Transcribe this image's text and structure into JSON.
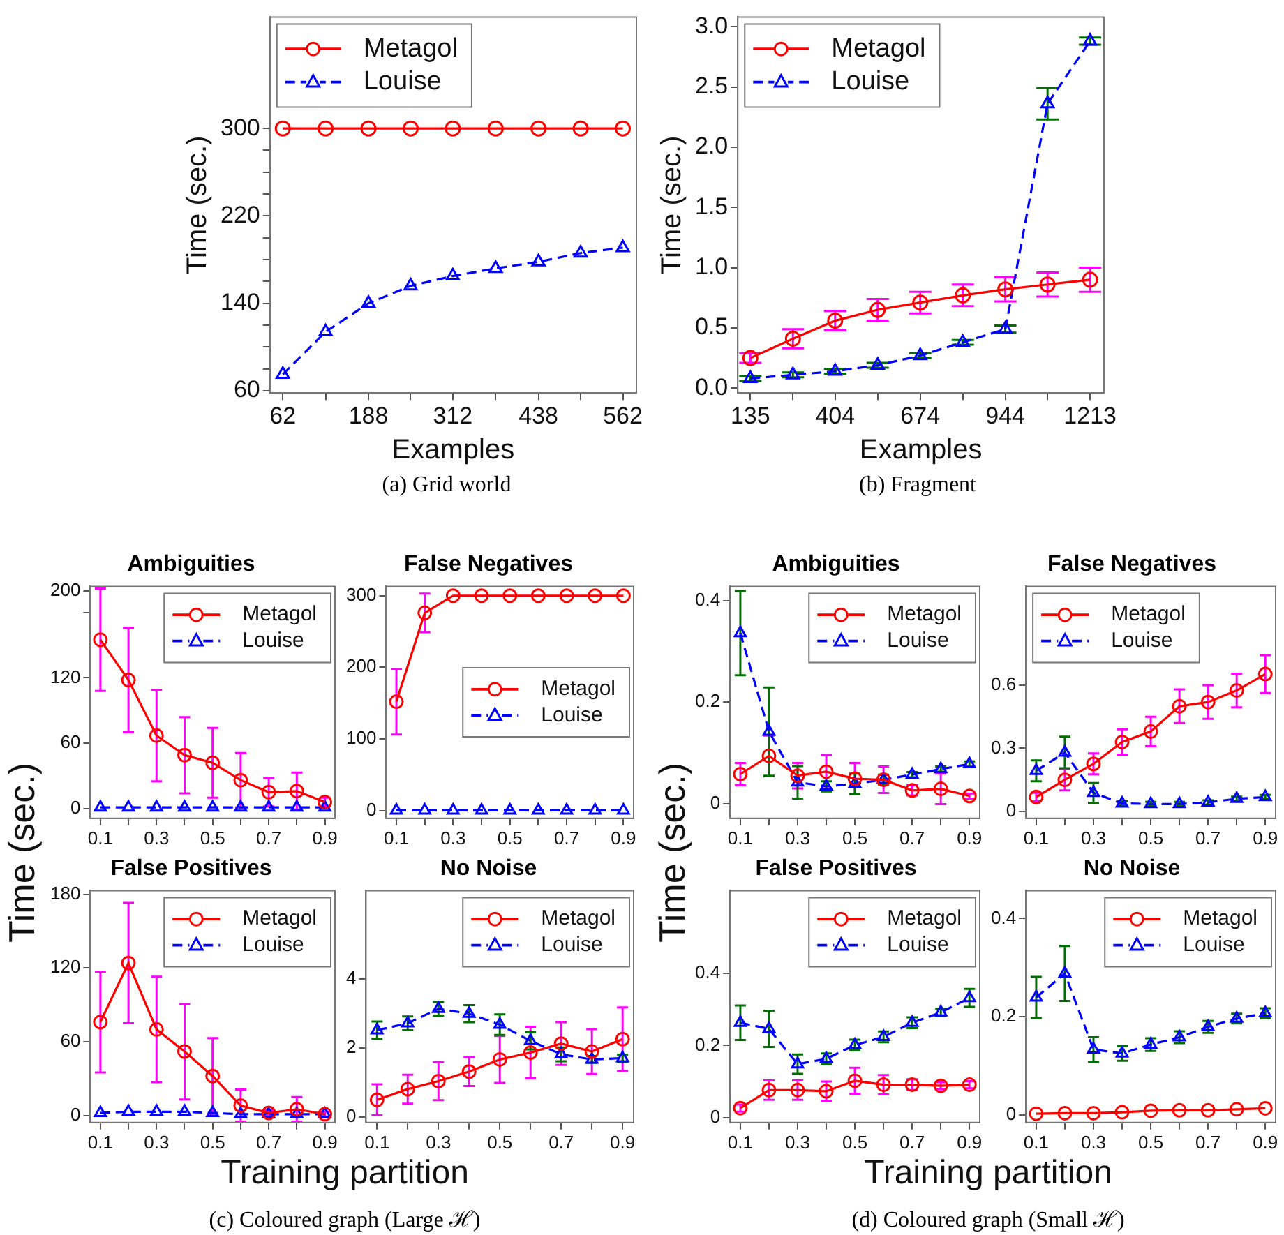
{
  "chart_data": [
    {
      "type": "line",
      "xlabel": "Examples",
      "ylabel": "Time (sec.)",
      "legend": "top left",
      "annotations": [
        "(a) Grid world"
      ],
      "x": [
        62,
        125,
        188,
        250,
        312,
        375,
        438,
        500,
        562
      ],
      "xlim": [
        43,
        582
      ],
      "ylim": [
        58,
        402
      ],
      "xticks": [
        62,
        {
          "value": 125,
          "label": null
        },
        188,
        {
          "value": 250,
          "label": null
        },
        312,
        {
          "value": 375,
          "label": null
        },
        438,
        {
          "value": 500,
          "label": null
        },
        562
      ],
      "yticks": [
        60,
        {
          "value": 80,
          "label": null
        },
        {
          "value": 100,
          "label": null
        },
        {
          "value": 120,
          "label": null
        },
        140,
        {
          "value": 160,
          "label": null
        },
        {
          "value": 180,
          "label": null
        },
        {
          "value": 200,
          "label": null
        },
        220,
        {
          "value": 240,
          "label": null
        },
        {
          "value": 260,
          "label": null
        },
        {
          "value": 280,
          "label": null
        },
        300
      ],
      "series": [
        {
          "name": "Metagol",
          "color": "#ff0000",
          "marker": "circle",
          "line_style": "solid",
          "values": [
            300,
            300,
            300,
            300,
            300,
            300,
            300,
            300,
            300
          ]
        },
        {
          "name": "Louise",
          "color": "#0000ff",
          "marker": "triangle",
          "line_style": "dashed",
          "values": [
            75,
            114,
            140,
            156,
            165,
            172,
            178,
            186,
            191
          ]
        }
      ]
    },
    {
      "type": "line",
      "xlabel": "Examples",
      "ylabel": "Time (sec.)",
      "legend": "top left",
      "annotations": [
        "(b) Fragment"
      ],
      "x": [
        135,
        270,
        404,
        539,
        674,
        809,
        944,
        1078,
        1213
      ],
      "xlim": [
        95,
        1257
      ],
      "ylim": [
        -0.04,
        3.08
      ],
      "xticks": [
        135,
        {
          "value": 270,
          "label": null
        },
        404,
        {
          "value": 539,
          "label": null
        },
        674,
        {
          "value": 809,
          "label": null
        },
        944,
        {
          "value": 1078,
          "label": null
        },
        1213
      ],
      "yticks": [
        {
          "value": 0,
          "label": "0.0"
        },
        0.5,
        {
          "value": 1,
          "label": "1.0"
        },
        1.5,
        {
          "value": 2,
          "label": "2.0"
        },
        2.5,
        {
          "value": 3,
          "label": "3.0"
        }
      ],
      "series": [
        {
          "name": "Metagol",
          "color": "#ff0000",
          "marker": "circle",
          "line_style": "solid",
          "values": [
            0.25,
            0.41,
            0.56,
            0.65,
            0.71,
            0.77,
            0.82,
            0.86,
            0.9
          ],
          "errors": [
            0.04,
            0.08,
            0.08,
            0.09,
            0.09,
            0.09,
            0.1,
            0.1,
            0.1
          ]
        },
        {
          "name": "Louise",
          "color": "#0000ff",
          "marker": "triangle",
          "line_style": "dashed",
          "values": [
            0.08,
            0.11,
            0.14,
            0.19,
            0.27,
            0.38,
            0.49,
            2.36,
            2.88
          ],
          "errors": [
            0.02,
            0.02,
            0.02,
            0.02,
            0.02,
            0.02,
            0.03,
            0.13,
            0.03
          ]
        }
      ]
    },
    {
      "type": "line",
      "title": "Ambiguities",
      "ylabel": "Time (sec.)",
      "legend": "top right",
      "annotations": [
        "(c) Coloured graph (Large ℋ)"
      ],
      "x": [
        0.1,
        0.2,
        0.3,
        0.4,
        0.5,
        0.6,
        0.7,
        0.8,
        0.9
      ],
      "xlim": [
        0.064,
        0.936
      ],
      "ylim": [
        -9,
        204
      ],
      "xticks": [
        0.1,
        {
          "value": 0.2,
          "label": null
        },
        0.3,
        {
          "value": 0.4,
          "label": null
        },
        0.5,
        {
          "value": 0.6,
          "label": null
        },
        0.7,
        {
          "value": 0.8,
          "label": null
        },
        0.9
      ],
      "yticks": [
        0,
        60,
        120,
        {
          "value": 180,
          "label": null
        },
        200
      ],
      "series": [
        {
          "name": "Metagol",
          "color": "#ff0000",
          "marker": "circle",
          "line_style": "solid",
          "values": [
            155,
            118,
            67,
            49,
            42,
            26,
            15,
            16,
            6
          ],
          "errors": [
            47,
            48,
            42,
            35,
            32,
            25,
            13,
            17,
            4
          ]
        },
        {
          "name": "Louise",
          "color": "#0000ff",
          "marker": "triangle",
          "line_style": "dashed",
          "values": [
            1,
            1,
            1,
            1,
            1,
            1,
            1,
            1,
            1
          ]
        }
      ]
    },
    {
      "type": "line",
      "title": "False Negatives",
      "legend": "right",
      "x": [
        0.1,
        0.2,
        0.3,
        0.4,
        0.5,
        0.6,
        0.7,
        0.8,
        0.9
      ],
      "xlim": [
        0.064,
        0.936
      ],
      "ylim": [
        -11,
        313
      ],
      "xticks": [
        0.1,
        {
          "value": 0.2,
          "label": null
        },
        0.3,
        {
          "value": 0.4,
          "label": null
        },
        0.5,
        {
          "value": 0.6,
          "label": null
        },
        0.7,
        {
          "value": 0.8,
          "label": null
        },
        0.9
      ],
      "yticks": [
        0,
        100,
        200,
        300
      ],
      "series": [
        {
          "name": "Metagol",
          "color": "#ff0000",
          "marker": "circle",
          "line_style": "solid",
          "values": [
            152,
            276,
            300,
            300,
            300,
            300,
            300,
            300,
            300
          ],
          "errors": [
            46,
            27,
            null,
            null,
            null,
            null,
            null,
            null,
            null
          ]
        },
        {
          "name": "Louise",
          "color": "#0000ff",
          "marker": "triangle",
          "line_style": "dashed",
          "values": [
            0,
            0,
            0,
            0,
            0,
            0,
            0,
            0,
            0
          ]
        }
      ]
    },
    {
      "type": "line",
      "title": "False Positives",
      "xlabel": "Training partition",
      "legend": "top right",
      "x": [
        0.1,
        0.2,
        0.3,
        0.4,
        0.5,
        0.6,
        0.7,
        0.8,
        0.9
      ],
      "xlim": [
        0.064,
        0.936
      ],
      "ylim": [
        -5.8,
        183
      ],
      "xticks": [
        0.1,
        {
          "value": 0.2,
          "label": null
        },
        0.3,
        {
          "value": 0.4,
          "label": null
        },
        0.5,
        {
          "value": 0.6,
          "label": null
        },
        0.7,
        {
          "value": 0.8,
          "label": null
        },
        0.9
      ],
      "yticks": [
        0,
        60,
        120,
        180
      ],
      "series": [
        {
          "name": "Metagol",
          "color": "#ff0000",
          "marker": "circle",
          "line_style": "solid",
          "values": [
            76,
            124,
            70,
            52,
            32,
            8,
            2,
            5,
            1
          ],
          "errors": [
            41,
            49,
            43,
            39,
            31,
            13,
            2,
            10,
            2
          ]
        },
        {
          "name": "Louise",
          "color": "#0000ff",
          "marker": "triangle",
          "line_style": "dashed",
          "values": [
            2,
            3,
            3,
            3,
            2,
            1,
            1,
            1,
            1
          ]
        }
      ]
    },
    {
      "type": "line",
      "title": "No Noise",
      "legend": "top right",
      "x": [
        0.1,
        0.2,
        0.3,
        0.4,
        0.5,
        0.6,
        0.7,
        0.8,
        0.9
      ],
      "xlim": [
        0.064,
        0.936
      ],
      "ylim": [
        -0.16,
        6.57
      ],
      "xticks": [
        0.1,
        {
          "value": 0.2,
          "label": null
        },
        0.3,
        {
          "value": 0.4,
          "label": null
        },
        0.5,
        {
          "value": 0.6,
          "label": null
        },
        0.7,
        {
          "value": 0.8,
          "label": null
        },
        0.9
      ],
      "yticks": [
        0,
        2,
        4
      ],
      "series": [
        {
          "name": "Metagol",
          "color": "#ff0000",
          "marker": "circle",
          "line_style": "solid",
          "values": [
            0.5,
            0.81,
            1.04,
            1.32,
            1.67,
            1.87,
            2.13,
            1.9,
            2.26
          ],
          "errors": [
            0.45,
            0.42,
            0.55,
            0.42,
            0.68,
            0.75,
            0.62,
            0.65,
            0.92
          ]
        },
        {
          "name": "Louise",
          "color": "#0000ff",
          "marker": "triangle",
          "line_style": "dashed",
          "values": [
            2.52,
            2.72,
            3.14,
            3.0,
            2.68,
            2.21,
            1.82,
            1.67,
            1.71
          ],
          "errors": [
            0.25,
            0.2,
            0.2,
            0.25,
            0.3,
            0.25,
            0.2,
            0.1,
            0.1
          ]
        }
      ]
    },
    {
      "type": "line",
      "title": "Ambiguities",
      "ylabel": "Time (sec.)",
      "legend": "top right",
      "annotations": [
        "(d) Coloured graph (Small ℋ)"
      ],
      "x": [
        0.1,
        0.2,
        0.3,
        0.4,
        0.5,
        0.6,
        0.7,
        0.8,
        0.9
      ],
      "xlim": [
        0.064,
        0.936
      ],
      "ylim": [
        -0.029,
        0.428
      ],
      "xticks": [
        0.1,
        {
          "value": 0.2,
          "label": null
        },
        0.3,
        {
          "value": 0.4,
          "label": null
        },
        0.5,
        {
          "value": 0.6,
          "label": null
        },
        0.7,
        {
          "value": 0.8,
          "label": null
        },
        0.9
      ],
      "yticks": [
        0,
        0.2,
        0.4
      ],
      "series": [
        {
          "name": "Metagol",
          "color": "#ff0000",
          "marker": "circle",
          "line_style": "solid",
          "values": [
            0.058,
            0.094,
            0.055,
            0.063,
            0.049,
            0.047,
            0.026,
            0.029,
            0.015
          ],
          "errors": [
            0.022,
            0.04,
            0.025,
            0.033,
            0.031,
            0.026,
            0.01,
            0.03,
            0.005
          ]
        },
        {
          "name": "Louise",
          "color": "#0000ff",
          "marker": "triangle",
          "line_style": "dashed",
          "values": [
            0.336,
            0.142,
            0.042,
            0.034,
            0.039,
            0.047,
            0.057,
            0.068,
            0.078
          ],
          "errors": [
            0.083,
            0.087,
            0.032,
            0.01,
            0.02,
            0.01,
            0.005,
            0.005,
            0.005
          ]
        }
      ]
    },
    {
      "type": "line",
      "title": "False Negatives",
      "legend": "top left",
      "x": [
        0.1,
        0.2,
        0.3,
        0.4,
        0.5,
        0.6,
        0.7,
        0.8,
        0.9
      ],
      "xlim": [
        0.064,
        0.936
      ],
      "ylim": [
        -0.033,
        1.07
      ],
      "xticks": [
        0.1,
        {
          "value": 0.2,
          "label": null
        },
        0.3,
        {
          "value": 0.4,
          "label": null
        },
        0.5,
        {
          "value": 0.6,
          "label": null
        },
        0.7,
        {
          "value": 0.8,
          "label": null
        },
        0.9
      ],
      "yticks": [
        0,
        0.3,
        0.6
      ],
      "series": [
        {
          "name": "Metagol",
          "color": "#ff0000",
          "marker": "circle",
          "line_style": "solid",
          "values": [
            0.068,
            0.15,
            0.226,
            0.33,
            0.38,
            0.5,
            0.52,
            0.575,
            0.653
          ],
          "errors": [
            0.02,
            0.05,
            0.05,
            0.06,
            0.07,
            0.08,
            0.08,
            0.08,
            0.09
          ]
        },
        {
          "name": "Louise",
          "color": "#0000ff",
          "marker": "triangle",
          "line_style": "dashed",
          "values": [
            0.193,
            0.28,
            0.088,
            0.038,
            0.035,
            0.035,
            0.043,
            0.06,
            0.068
          ],
          "errors": [
            0.05,
            0.075,
            0.047,
            0.01,
            0.01,
            0.01,
            0.01,
            0.01,
            0.01
          ]
        }
      ]
    },
    {
      "type": "line",
      "title": "False Positives",
      "xlabel": "Training partition",
      "legend": "top right",
      "x": [
        0.1,
        0.2,
        0.3,
        0.4,
        0.5,
        0.6,
        0.7,
        0.8,
        0.9
      ],
      "xlim": [
        0.064,
        0.936
      ],
      "ylim": [
        -0.014,
        0.63
      ],
      "xticks": [
        0.1,
        {
          "value": 0.2,
          "label": null
        },
        0.3,
        {
          "value": 0.4,
          "label": null
        },
        0.5,
        {
          "value": 0.6,
          "label": null
        },
        0.7,
        {
          "value": 0.8,
          "label": null
        },
        0.9
      ],
      "yticks": [
        0,
        0.2,
        0.4
      ],
      "series": [
        {
          "name": "Metagol",
          "color": "#ff0000",
          "marker": "circle",
          "line_style": "solid",
          "values": [
            0.026,
            0.076,
            0.076,
            0.073,
            0.102,
            0.091,
            0.091,
            0.088,
            0.091
          ],
          "errors": [
            0.01,
            0.027,
            0.027,
            0.027,
            0.036,
            0.027,
            0.015,
            0.01,
            0.01
          ]
        },
        {
          "name": "Louise",
          "color": "#0000ff",
          "marker": "triangle",
          "line_style": "dashed",
          "values": [
            0.263,
            0.246,
            0.148,
            0.163,
            0.201,
            0.224,
            0.263,
            0.292,
            0.332
          ],
          "errors": [
            0.048,
            0.05,
            0.027,
            0.015,
            0.015,
            0.015,
            0.015,
            0.01,
            0.025
          ]
        }
      ]
    },
    {
      "type": "line",
      "title": "No Noise",
      "legend": "top right",
      "x": [
        0.1,
        0.2,
        0.3,
        0.4,
        0.5,
        0.6,
        0.7,
        0.8,
        0.9
      ],
      "xlim": [
        0.064,
        0.936
      ],
      "ylim": [
        -0.016,
        0.457
      ],
      "xticks": [
        0.1,
        {
          "value": 0.2,
          "label": null
        },
        0.3,
        {
          "value": 0.4,
          "label": null
        },
        0.5,
        {
          "value": 0.6,
          "label": null
        },
        0.7,
        {
          "value": 0.8,
          "label": null
        },
        0.9
      ],
      "yticks": [
        0,
        0.2,
        0.4
      ],
      "series": [
        {
          "name": "Metagol",
          "color": "#ff0000",
          "marker": "circle",
          "line_style": "solid",
          "values": [
            0.002,
            0.003,
            0.003,
            0.005,
            0.008,
            0.009,
            0.009,
            0.011,
            0.013
          ]
        },
        {
          "name": "Louise",
          "color": "#0000ff",
          "marker": "triangle",
          "line_style": "dashed",
          "values": [
            0.239,
            0.288,
            0.133,
            0.125,
            0.143,
            0.158,
            0.179,
            0.196,
            0.207
          ],
          "errors": [
            0.042,
            0.056,
            0.025,
            0.015,
            0.013,
            0.012,
            0.012,
            0.01,
            0.01
          ]
        }
      ]
    }
  ]
}
